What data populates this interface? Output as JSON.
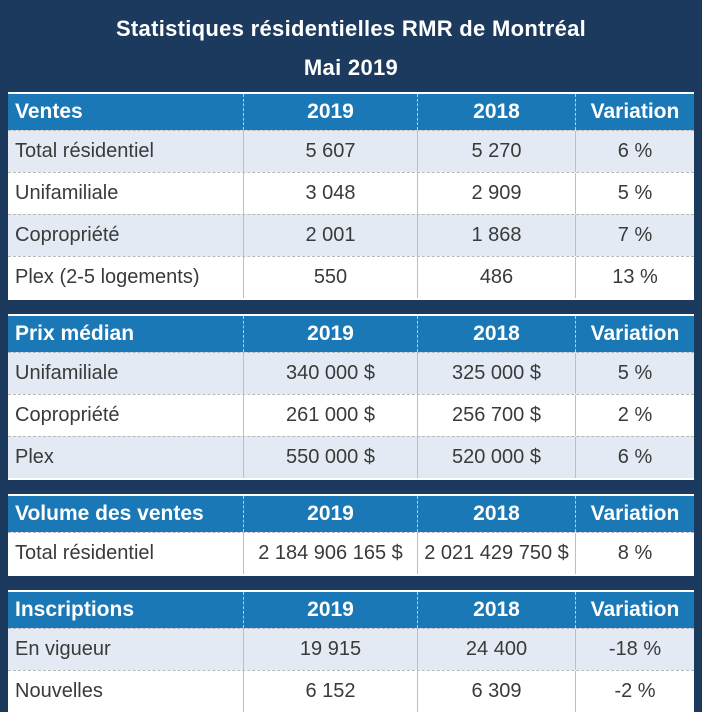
{
  "title": {
    "line1": "Statistiques résidentielles RMR de Montréal",
    "line2": "Mai 2019"
  },
  "columns": [
    "2019",
    "2018",
    "Variation"
  ],
  "sections": [
    {
      "label": "Ventes",
      "rows": [
        {
          "label": "Total résidentiel",
          "y2019": "5 607",
          "y2018": "5 270",
          "variation": "6 %"
        },
        {
          "label": "Unifamiliale",
          "y2019": "3 048",
          "y2018": "2 909",
          "variation": "5 %"
        },
        {
          "label": "Copropriété",
          "y2019": "2 001",
          "y2018": "1 868",
          "variation": "7 %"
        },
        {
          "label": "Plex (2-5 logements)",
          "y2019": "550",
          "y2018": "486",
          "variation": "13 %"
        }
      ]
    },
    {
      "label": "Prix médian",
      "rows": [
        {
          "label": "Unifamiliale",
          "y2019": "340 000 $",
          "y2018": "325 000 $",
          "variation": "5 %"
        },
        {
          "label": "Copropriété",
          "y2019": "261 000 $",
          "y2018": "256 700 $",
          "variation": "2 %"
        },
        {
          "label": "Plex",
          "y2019": "550 000 $",
          "y2018": "520 000 $",
          "variation": "6 %"
        }
      ]
    },
    {
      "label": "Volume des ventes",
      "rows": [
        {
          "label": "Total résidentiel",
          "y2019": "2 184 906 165 $",
          "y2018": "2 021 429 750 $",
          "variation": "8 %"
        }
      ]
    },
    {
      "label": "Inscriptions",
      "rows": [
        {
          "label": "En vigueur",
          "y2019": "19 915",
          "y2018": "24 400",
          "variation": "-18 %"
        },
        {
          "label": "Nouvelles",
          "y2019": "6 152",
          "y2018": "6 309",
          "variation": "-2 %"
        }
      ]
    }
  ],
  "colors": {
    "navy": "#1C3A5E",
    "header_blue": "#1B78B6",
    "row_tint": "#E3EAF3",
    "row_white": "#FFFFFF",
    "text_dark": "#3A3A3A",
    "header_text": "#FFFFFF"
  },
  "chart_data": {
    "type": "table",
    "title": "Statistiques résidentielles RMR de Montréal",
    "subtitle": "Mai 2019",
    "columns": [
      "2019",
      "2018",
      "Variation"
    ],
    "sections": [
      {
        "name": "Ventes",
        "rows": [
          {
            "label": "Total résidentiel",
            "2019": 5607,
            "2018": 5270,
            "variation_pct": 6
          },
          {
            "label": "Unifamiliale",
            "2019": 3048,
            "2018": 2909,
            "variation_pct": 5
          },
          {
            "label": "Copropriété",
            "2019": 2001,
            "2018": 1868,
            "variation_pct": 7
          },
          {
            "label": "Plex (2-5 logements)",
            "2019": 550,
            "2018": 486,
            "variation_pct": 13
          }
        ]
      },
      {
        "name": "Prix médian",
        "rows": [
          {
            "label": "Unifamiliale",
            "2019": 340000,
            "2018": 325000,
            "variation_pct": 5,
            "unit": "$"
          },
          {
            "label": "Copropriété",
            "2019": 261000,
            "2018": 256700,
            "variation_pct": 2,
            "unit": "$"
          },
          {
            "label": "Plex",
            "2019": 550000,
            "2018": 520000,
            "variation_pct": 6,
            "unit": "$"
          }
        ]
      },
      {
        "name": "Volume des ventes",
        "rows": [
          {
            "label": "Total résidentiel",
            "2019": 2184906165,
            "2018": 2021429750,
            "variation_pct": 8,
            "unit": "$"
          }
        ]
      },
      {
        "name": "Inscriptions",
        "rows": [
          {
            "label": "En vigueur",
            "2019": 19915,
            "2018": 24400,
            "variation_pct": -18
          },
          {
            "label": "Nouvelles",
            "2019": 6152,
            "2018": 6309,
            "variation_pct": -2
          }
        ]
      }
    ]
  }
}
